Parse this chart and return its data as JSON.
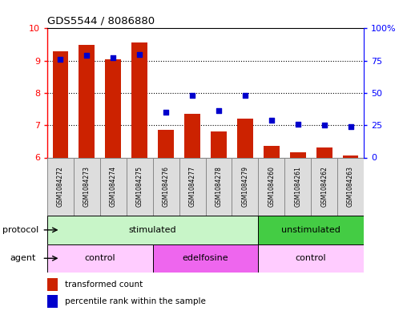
{
  "title": "GDS5544 / 8086880",
  "samples": [
    "GSM1084272",
    "GSM1084273",
    "GSM1084274",
    "GSM1084275",
    "GSM1084276",
    "GSM1084277",
    "GSM1084278",
    "GSM1084279",
    "GSM1084260",
    "GSM1084261",
    "GSM1084262",
    "GSM1084263"
  ],
  "bar_values": [
    9.3,
    9.5,
    9.05,
    9.55,
    6.85,
    7.35,
    6.8,
    7.2,
    6.35,
    6.15,
    6.3,
    6.05
  ],
  "scatter_values": [
    76,
    79,
    77,
    80,
    35,
    48,
    36,
    48,
    29,
    26,
    25,
    24
  ],
  "bar_color": "#cc2200",
  "scatter_color": "#0000cc",
  "ylim_left": [
    6,
    10
  ],
  "ylim_right": [
    0,
    100
  ],
  "yticks_left": [
    6,
    7,
    8,
    9,
    10
  ],
  "yticks_right": [
    0,
    25,
    50,
    75,
    100
  ],
  "ytick_labels_right": [
    "0",
    "25",
    "50",
    "75",
    "100%"
  ],
  "grid_yticks": [
    7,
    8,
    9
  ],
  "protocol_groups": [
    {
      "label": "stimulated",
      "start": 0,
      "end": 8,
      "color": "#c8f5c8"
    },
    {
      "label": "unstimulated",
      "start": 8,
      "end": 12,
      "color": "#44cc44"
    }
  ],
  "agent_groups": [
    {
      "label": "control",
      "start": 0,
      "end": 4,
      "color": "#ffccff"
    },
    {
      "label": "edelfosine",
      "start": 4,
      "end": 8,
      "color": "#ee66ee"
    },
    {
      "label": "control",
      "start": 8,
      "end": 12,
      "color": "#ffccff"
    }
  ],
  "legend_bar_label": "transformed count",
  "legend_scatter_label": "percentile rank within the sample",
  "protocol_label": "protocol",
  "agent_label": "agent",
  "bar_width": 0.6,
  "sample_box_color": "#dddddd",
  "sample_box_edge": "#888888"
}
